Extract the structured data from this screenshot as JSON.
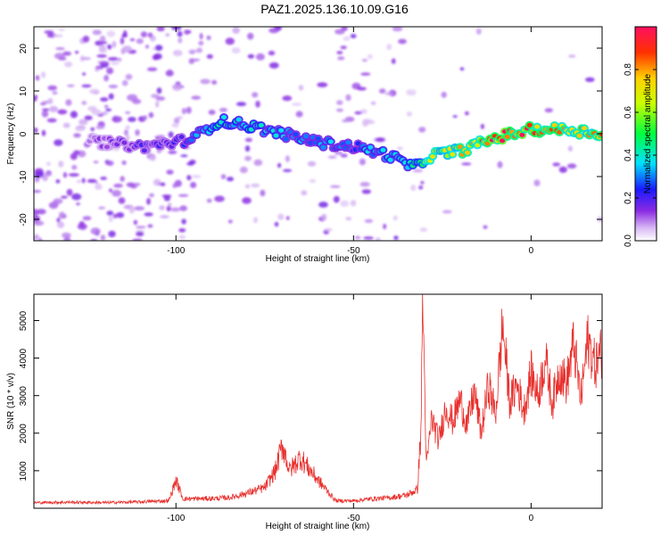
{
  "title": "PAZ1.2025.136.10.09.G16",
  "chart_data": [
    {
      "type": "heatmap",
      "xlabel": "Height of straight line (km)",
      "ylabel": "Frequency (Hz)",
      "xlim": [
        -140,
        20
      ],
      "ylim": [
        -25,
        25
      ],
      "xticks": [
        -100,
        -50,
        0
      ],
      "yticks": [
        -20,
        -10,
        0,
        10,
        20
      ],
      "colorbar": {
        "label": "Normalized spectral amplitude",
        "range": [
          0,
          1
        ],
        "ticks": [
          0.0,
          0.2,
          0.4,
          0.6,
          0.8
        ]
      },
      "ridge": {
        "x": [
          -120,
          -110,
          -100,
          -95,
          -88,
          -80,
          -70,
          -60,
          -50,
          -40,
          -33,
          -28,
          -20,
          -10,
          0,
          10,
          20
        ],
        "freq": [
          -2,
          -3,
          -2,
          -1,
          3,
          2,
          0,
          -2,
          -3,
          -5,
          -8,
          -5,
          -4,
          -1,
          1,
          1,
          0
        ],
        "amplitude": [
          0.15,
          0.2,
          0.22,
          0.3,
          0.45,
          0.4,
          0.35,
          0.35,
          0.3,
          0.4,
          0.45,
          0.7,
          0.8,
          0.95,
          0.95,
          0.85,
          0.8
        ]
      }
    },
    {
      "type": "line",
      "xlabel": "Height of straight line (km)",
      "ylabel": "SNR (10 * v/v)",
      "xlim": [
        -140,
        20
      ],
      "ylim": [
        0,
        5700
      ],
      "xticks": [
        -100,
        -50,
        0
      ],
      "yticks": [
        1000,
        2000,
        3000,
        4000,
        5000
      ],
      "color": "#e8312e",
      "x": [
        -140,
        -130,
        -120,
        -110,
        -102,
        -100,
        -98,
        -90,
        -85,
        -80,
        -75,
        -72,
        -70,
        -68,
        -65,
        -60,
        -55,
        -50,
        -45,
        -40,
        -35,
        -32,
        -31,
        -30.5,
        -29.5,
        -28,
        -26,
        -24,
        -22,
        -20,
        -18,
        -16,
        -14,
        -12,
        -10,
        -9,
        -8,
        -6,
        -4,
        -2,
        0,
        2,
        4,
        6,
        8,
        10,
        12,
        14,
        16,
        18,
        20
      ],
      "y": [
        150,
        160,
        150,
        170,
        200,
        750,
        250,
        260,
        280,
        400,
        550,
        1000,
        1700,
        1000,
        1350,
        750,
        200,
        200,
        250,
        280,
        350,
        500,
        2100,
        5700,
        1100,
        2400,
        1800,
        2700,
        2300,
        2900,
        2200,
        3100,
        2000,
        3300,
        2500,
        3700,
        4900,
        2800,
        3300,
        2600,
        3600,
        3000,
        4000,
        2800,
        3700,
        3300,
        4400,
        2900,
        4500,
        3800,
        4200
      ]
    }
  ]
}
